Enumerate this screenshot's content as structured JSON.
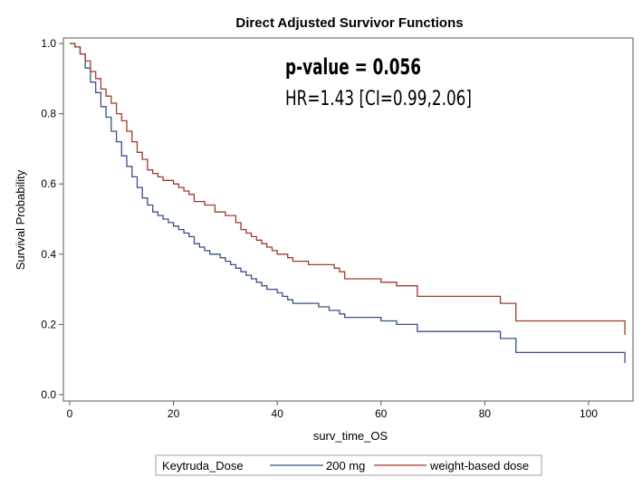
{
  "chart_data": {
    "type": "line",
    "step": true,
    "title": "Direct Adjusted Survivor Functions",
    "xlabel": "surv_time_OS",
    "ylabel": "Survival Probability",
    "xlim": [
      0,
      108
    ],
    "ylim": [
      0,
      1.0
    ],
    "x_ticks": [
      0,
      20,
      40,
      60,
      80,
      100
    ],
    "y_ticks": [
      0.0,
      0.2,
      0.4,
      0.6,
      0.8,
      1.0
    ],
    "x_tick_labels": [
      "0",
      "20",
      "40",
      "60",
      "80",
      "100"
    ],
    "y_tick_labels": [
      "0.0",
      "0.2",
      "0.4",
      "0.6",
      "0.8",
      "1.0"
    ],
    "grid": false,
    "legend_title": "Keytruda_Dose",
    "legend_position": "bottom",
    "annotations": {
      "p_value": "p-value = 0.056",
      "hr": "HR=1.43 [CI=0.99,2.06]"
    },
    "series": [
      {
        "name": "200 mg",
        "color": "#3b4f8a",
        "x": [
          0,
          1,
          2,
          3,
          4,
          5,
          6,
          7,
          8,
          9,
          10,
          11,
          12,
          13,
          14,
          15,
          16,
          17,
          18,
          19,
          20,
          21,
          22,
          23,
          24,
          25,
          26,
          27,
          28,
          29,
          30,
          31,
          32,
          33,
          34,
          35,
          36,
          37,
          38,
          39,
          40,
          41,
          42,
          43,
          44,
          46,
          48,
          50,
          51,
          52,
          53,
          56,
          60,
          63,
          67,
          75,
          83,
          86,
          107
        ],
        "y": [
          1.0,
          0.99,
          0.97,
          0.93,
          0.89,
          0.86,
          0.82,
          0.79,
          0.75,
          0.72,
          0.68,
          0.65,
          0.62,
          0.59,
          0.56,
          0.54,
          0.52,
          0.51,
          0.5,
          0.49,
          0.48,
          0.47,
          0.46,
          0.45,
          0.43,
          0.42,
          0.41,
          0.4,
          0.4,
          0.39,
          0.38,
          0.37,
          0.36,
          0.35,
          0.34,
          0.33,
          0.32,
          0.31,
          0.3,
          0.3,
          0.29,
          0.28,
          0.27,
          0.26,
          0.26,
          0.26,
          0.25,
          0.24,
          0.24,
          0.23,
          0.22,
          0.22,
          0.21,
          0.2,
          0.18,
          0.18,
          0.16,
          0.12,
          0.09
        ]
      },
      {
        "name": "weight-based dose",
        "color": "#a03a2e",
        "x": [
          0,
          1,
          2,
          3,
          4,
          5,
          6,
          7,
          8,
          9,
          10,
          11,
          12,
          13,
          14,
          15,
          16,
          17,
          18,
          20,
          21,
          22,
          23,
          24,
          26,
          28,
          30,
          32,
          33,
          34,
          35,
          36,
          37,
          38,
          39,
          40,
          42,
          43,
          44,
          46,
          48,
          51,
          52,
          53,
          57,
          60,
          63,
          67,
          75,
          83,
          86,
          107
        ],
        "y": [
          1.0,
          0.99,
          0.97,
          0.95,
          0.92,
          0.9,
          0.87,
          0.85,
          0.83,
          0.8,
          0.78,
          0.75,
          0.72,
          0.69,
          0.67,
          0.64,
          0.63,
          0.62,
          0.61,
          0.6,
          0.59,
          0.58,
          0.57,
          0.55,
          0.54,
          0.52,
          0.51,
          0.49,
          0.47,
          0.46,
          0.45,
          0.44,
          0.43,
          0.42,
          0.41,
          0.4,
          0.39,
          0.38,
          0.38,
          0.37,
          0.37,
          0.36,
          0.35,
          0.33,
          0.33,
          0.32,
          0.31,
          0.28,
          0.28,
          0.26,
          0.21,
          0.17
        ]
      }
    ]
  }
}
